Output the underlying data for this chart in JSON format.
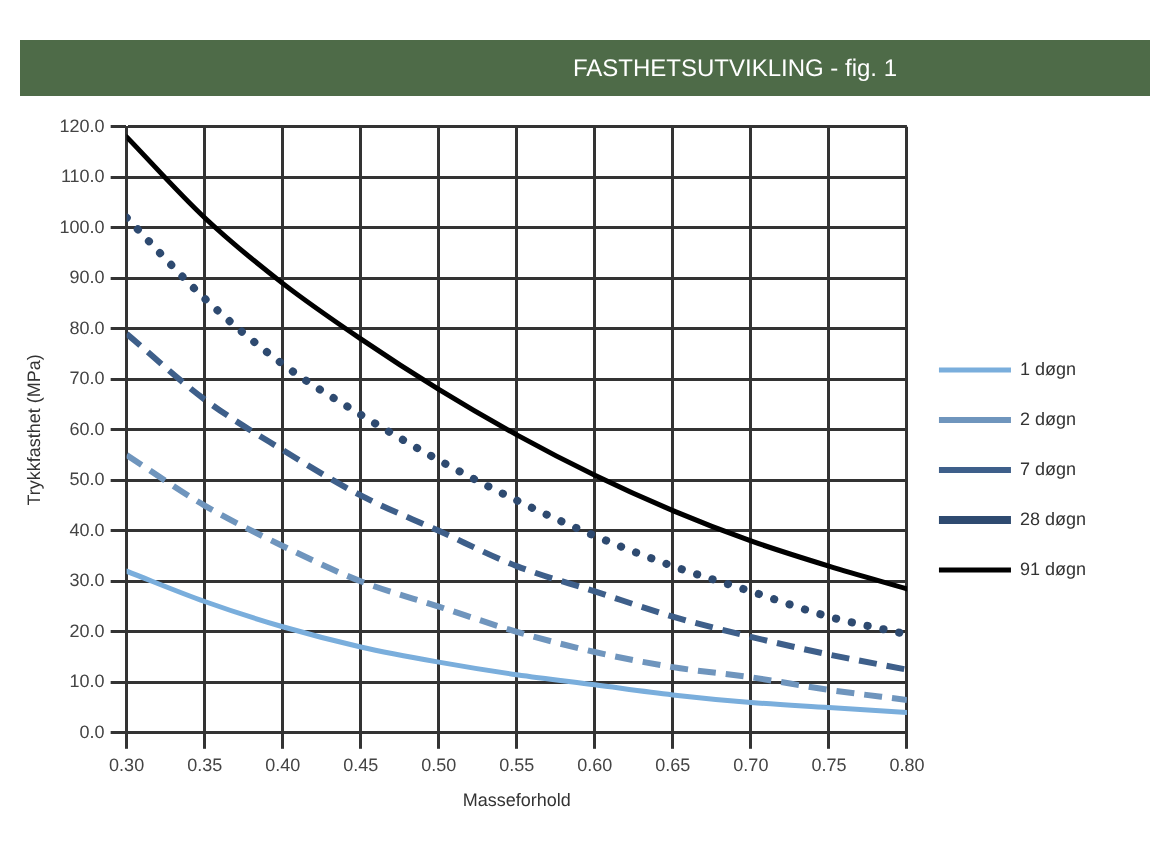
{
  "chart_data": {
    "type": "line",
    "title": "FASTHETSUTVIKLING - fig. 1",
    "xlabel": "Masseforhold",
    "ylabel": "Trykkfasthet (MPa)",
    "x": [
      0.3,
      0.35,
      0.4,
      0.45,
      0.5,
      0.55,
      0.6,
      0.65,
      0.7,
      0.75,
      0.8
    ],
    "series": [
      {
        "name": "1 døgn",
        "color": "#7aaedc",
        "line_style": "solid",
        "values": [
          32,
          26,
          21,
          17,
          14,
          11.5,
          9.5,
          7.5,
          6,
          5,
          4
        ]
      },
      {
        "name": "2 døgn",
        "color": "#6f95bd",
        "line_style": "dashed",
        "values": [
          55,
          45,
          37,
          30,
          25,
          20,
          16,
          13,
          11,
          8.5,
          6.5
        ]
      },
      {
        "name": "7 døgn",
        "color": "#3e5f8a",
        "line_style": "dashed",
        "values": [
          79,
          66,
          56,
          47,
          40,
          33,
          28,
          23,
          19,
          15.5,
          12.5
        ]
      },
      {
        "name": "28 døgn",
        "color": "#2e4a70",
        "line_style": "dotted",
        "values": [
          102,
          86,
          73,
          63,
          54,
          46,
          39,
          33,
          28,
          23,
          19.5
        ]
      },
      {
        "name": "91 døgn",
        "color": "#000000",
        "line_style": "solid",
        "values": [
          118,
          102,
          89,
          78,
          68,
          59,
          51,
          44,
          38,
          33,
          28.5
        ]
      }
    ],
    "xlim": [
      0.3,
      0.8
    ],
    "xticks": [
      {
        "value": 0.3,
        "label": "0.30"
      },
      {
        "value": 0.35,
        "label": "0.35"
      },
      {
        "value": 0.4,
        "label": "0.40"
      },
      {
        "value": 0.45,
        "label": "0.45"
      },
      {
        "value": 0.5,
        "label": "0.50"
      },
      {
        "value": 0.55,
        "label": "0.55"
      },
      {
        "value": 0.6,
        "label": "0.60"
      },
      {
        "value": 0.65,
        "label": "0.65"
      },
      {
        "value": 0.7,
        "label": "0.70"
      },
      {
        "value": 0.75,
        "label": "0.75"
      },
      {
        "value": 0.8,
        "label": "0.80"
      }
    ],
    "ylim": [
      0,
      120
    ],
    "yticks": [
      {
        "value": 0,
        "label": "0.0"
      },
      {
        "value": 10,
        "label": "10.0"
      },
      {
        "value": 20,
        "label": "20.0"
      },
      {
        "value": 30,
        "label": "30.0"
      },
      {
        "value": 40,
        "label": "40.0"
      },
      {
        "value": 50,
        "label": "50.0"
      },
      {
        "value": 60,
        "label": "60.0"
      },
      {
        "value": 70,
        "label": "70.0"
      },
      {
        "value": 80,
        "label": "80.0"
      },
      {
        "value": 90,
        "label": "90.0"
      },
      {
        "value": 100,
        "label": "100.0"
      },
      {
        "value": 110,
        "label": "110.0"
      },
      {
        "value": 120,
        "label": "120.0"
      }
    ],
    "grid": true,
    "legend": "right",
    "marker": "none"
  }
}
